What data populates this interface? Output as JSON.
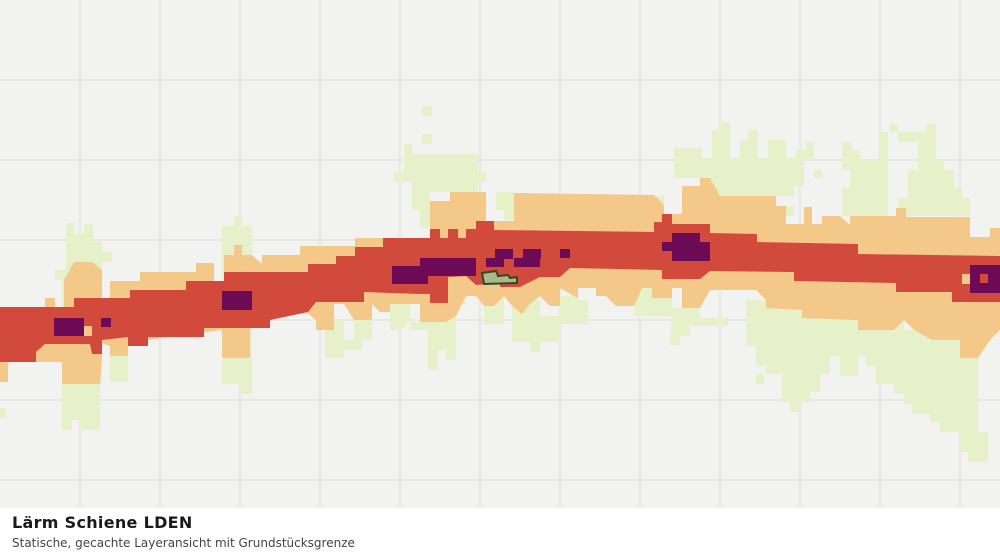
{
  "panel": {
    "title": "Lärm Schiene LDEN",
    "subtitle": "Statische, gecachte Layeransicht mit Grundstücksgrenze"
  }
}
